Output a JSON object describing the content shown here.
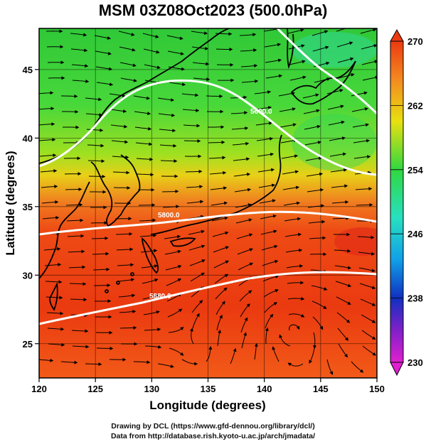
{
  "title": "MSM 03Z08Oct2023 (500.0hPa)",
  "x_axis": {
    "title": "Longitude (degrees)",
    "ticks": [
      "120",
      "125",
      "130",
      "135",
      "140",
      "145",
      "150"
    ]
  },
  "y_axis": {
    "title": "Latitude  (degrees)",
    "ticks": [
      "25",
      "30",
      "35",
      "40",
      "45"
    ]
  },
  "colorbar": {
    "ticks": [
      "270",
      "262",
      "254",
      "246",
      "238",
      "230"
    ]
  },
  "contour_labels": [
    "5600.0",
    "5800.0",
    "5880.0"
  ],
  "footer": {
    "line1": "Drawing by DCL (https://www.gfd-dennou.org/library/dcl/)",
    "line2": "Data from http://database.rish.kyoto-u.ac.jp/arch/jmadata/"
  },
  "colors": {
    "warm": "#e83a10",
    "orange": "#f4781e",
    "yellow": "#e0e010",
    "green": "#28d83c",
    "cyan": "#28e0c8",
    "blue": "#1030c0",
    "magenta": "#e020d0"
  },
  "chart_data": {
    "type": "heatmap",
    "title": "MSM 03Z08Oct2023 (500.0hPa)",
    "xlabel": "Longitude (degrees)",
    "ylabel": "Latitude  (degrees)",
    "xlim": [
      120,
      150
    ],
    "ylim": [
      22.5,
      48
    ],
    "colorbar_range": [
      230,
      270
    ],
    "contour_values": [
      5600,
      5800,
      5880
    ],
    "overlays": [
      "temperature shading",
      "height contours",
      "wind streamlines",
      "coastlines",
      "grid"
    ]
  }
}
